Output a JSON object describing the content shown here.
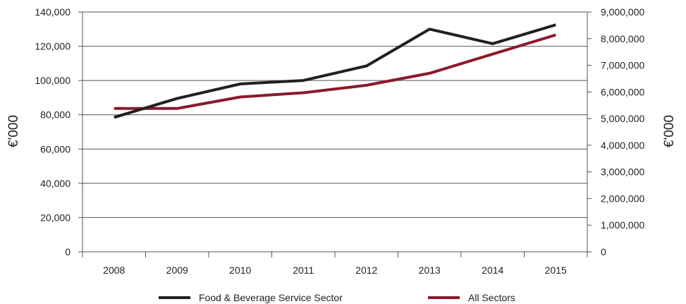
{
  "chart_data": {
    "type": "line",
    "categories": [
      "2008",
      "2009",
      "2010",
      "2011",
      "2012",
      "2013",
      "2014",
      "2015"
    ],
    "y_left": {
      "label": "€'000",
      "ticks": [
        "0",
        "20,000",
        "40,000",
        "60,000",
        "80,000",
        "100,000",
        "120,000",
        "140,000"
      ],
      "ylim": [
        0,
        140000
      ]
    },
    "y_right": {
      "label": "€'000",
      "ticks": [
        "0",
        "1,000,000",
        "2,000,000",
        "3,000,000",
        "4,000,000",
        "5,000,000",
        "6,000,000",
        "7,000,000",
        "8,000,000",
        "9,000,000"
      ],
      "ylim": [
        0,
        9000000
      ]
    },
    "series": [
      {
        "name": "Food & Beverage Service Sector",
        "axis": "left",
        "color": "#231f20",
        "values": [
          78500,
          89500,
          98000,
          100000,
          108500,
          130000,
          121500,
          132500
        ]
      },
      {
        "name": "All Sectors",
        "axis": "right",
        "color": "#8b1a2b",
        "values": [
          5380000,
          5380000,
          5810000,
          5970000,
          6250000,
          6700000,
          7420000,
          8140000
        ]
      }
    ],
    "grid": "horizontal",
    "legend_position": "bottom"
  }
}
